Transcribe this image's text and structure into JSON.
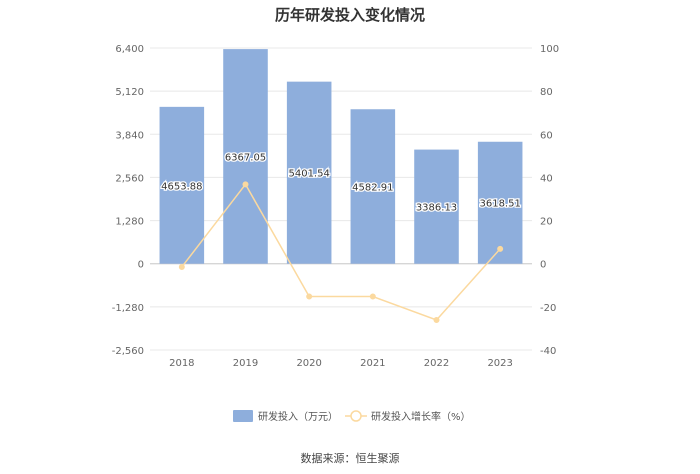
{
  "chart_data": {
    "type": "bar",
    "title": "历年研发投入变化情况",
    "categories": [
      "2018",
      "2019",
      "2020",
      "2021",
      "2022",
      "2023"
    ],
    "series": [
      {
        "name": "研发投入（万元）",
        "type": "bar",
        "axis": "left",
        "values": [
          4653.88,
          6367.05,
          5401.54,
          4582.91,
          3386.13,
          3618.51
        ],
        "labels": [
          "4653.88",
          "6367.05",
          "5401.54",
          "4582.91",
          "3386.13",
          "3618.51"
        ]
      },
      {
        "name": "研发投入增长率（%）",
        "type": "line",
        "axis": "right",
        "values": [
          -1.5,
          36.8,
          -15.2,
          -15.2,
          -26.1,
          6.9
        ]
      }
    ],
    "y_left": {
      "lim": [
        -2560,
        6400
      ],
      "ticks": [
        6400,
        5120,
        3840,
        2560,
        1280,
        0,
        -1280,
        -2560
      ],
      "tick_labels": [
        "6,400",
        "5,120",
        "3,840",
        "2,560",
        "1,280",
        "0",
        "-1,280",
        "-2,560"
      ]
    },
    "y_right": {
      "lim": [
        -40,
        100
      ],
      "ticks": [
        100,
        80,
        60,
        40,
        20,
        0,
        -20,
        -40
      ],
      "tick_labels": [
        "100",
        "80",
        "60",
        "40",
        "20",
        "0",
        "-20",
        "-40"
      ]
    },
    "grid": true,
    "legend_position": "bottom",
    "colors": {
      "bar": "#8eaedc",
      "line": "#fbd99f",
      "grid": "#e8e8e8"
    }
  },
  "source_text": "数据来源：恒生聚源"
}
